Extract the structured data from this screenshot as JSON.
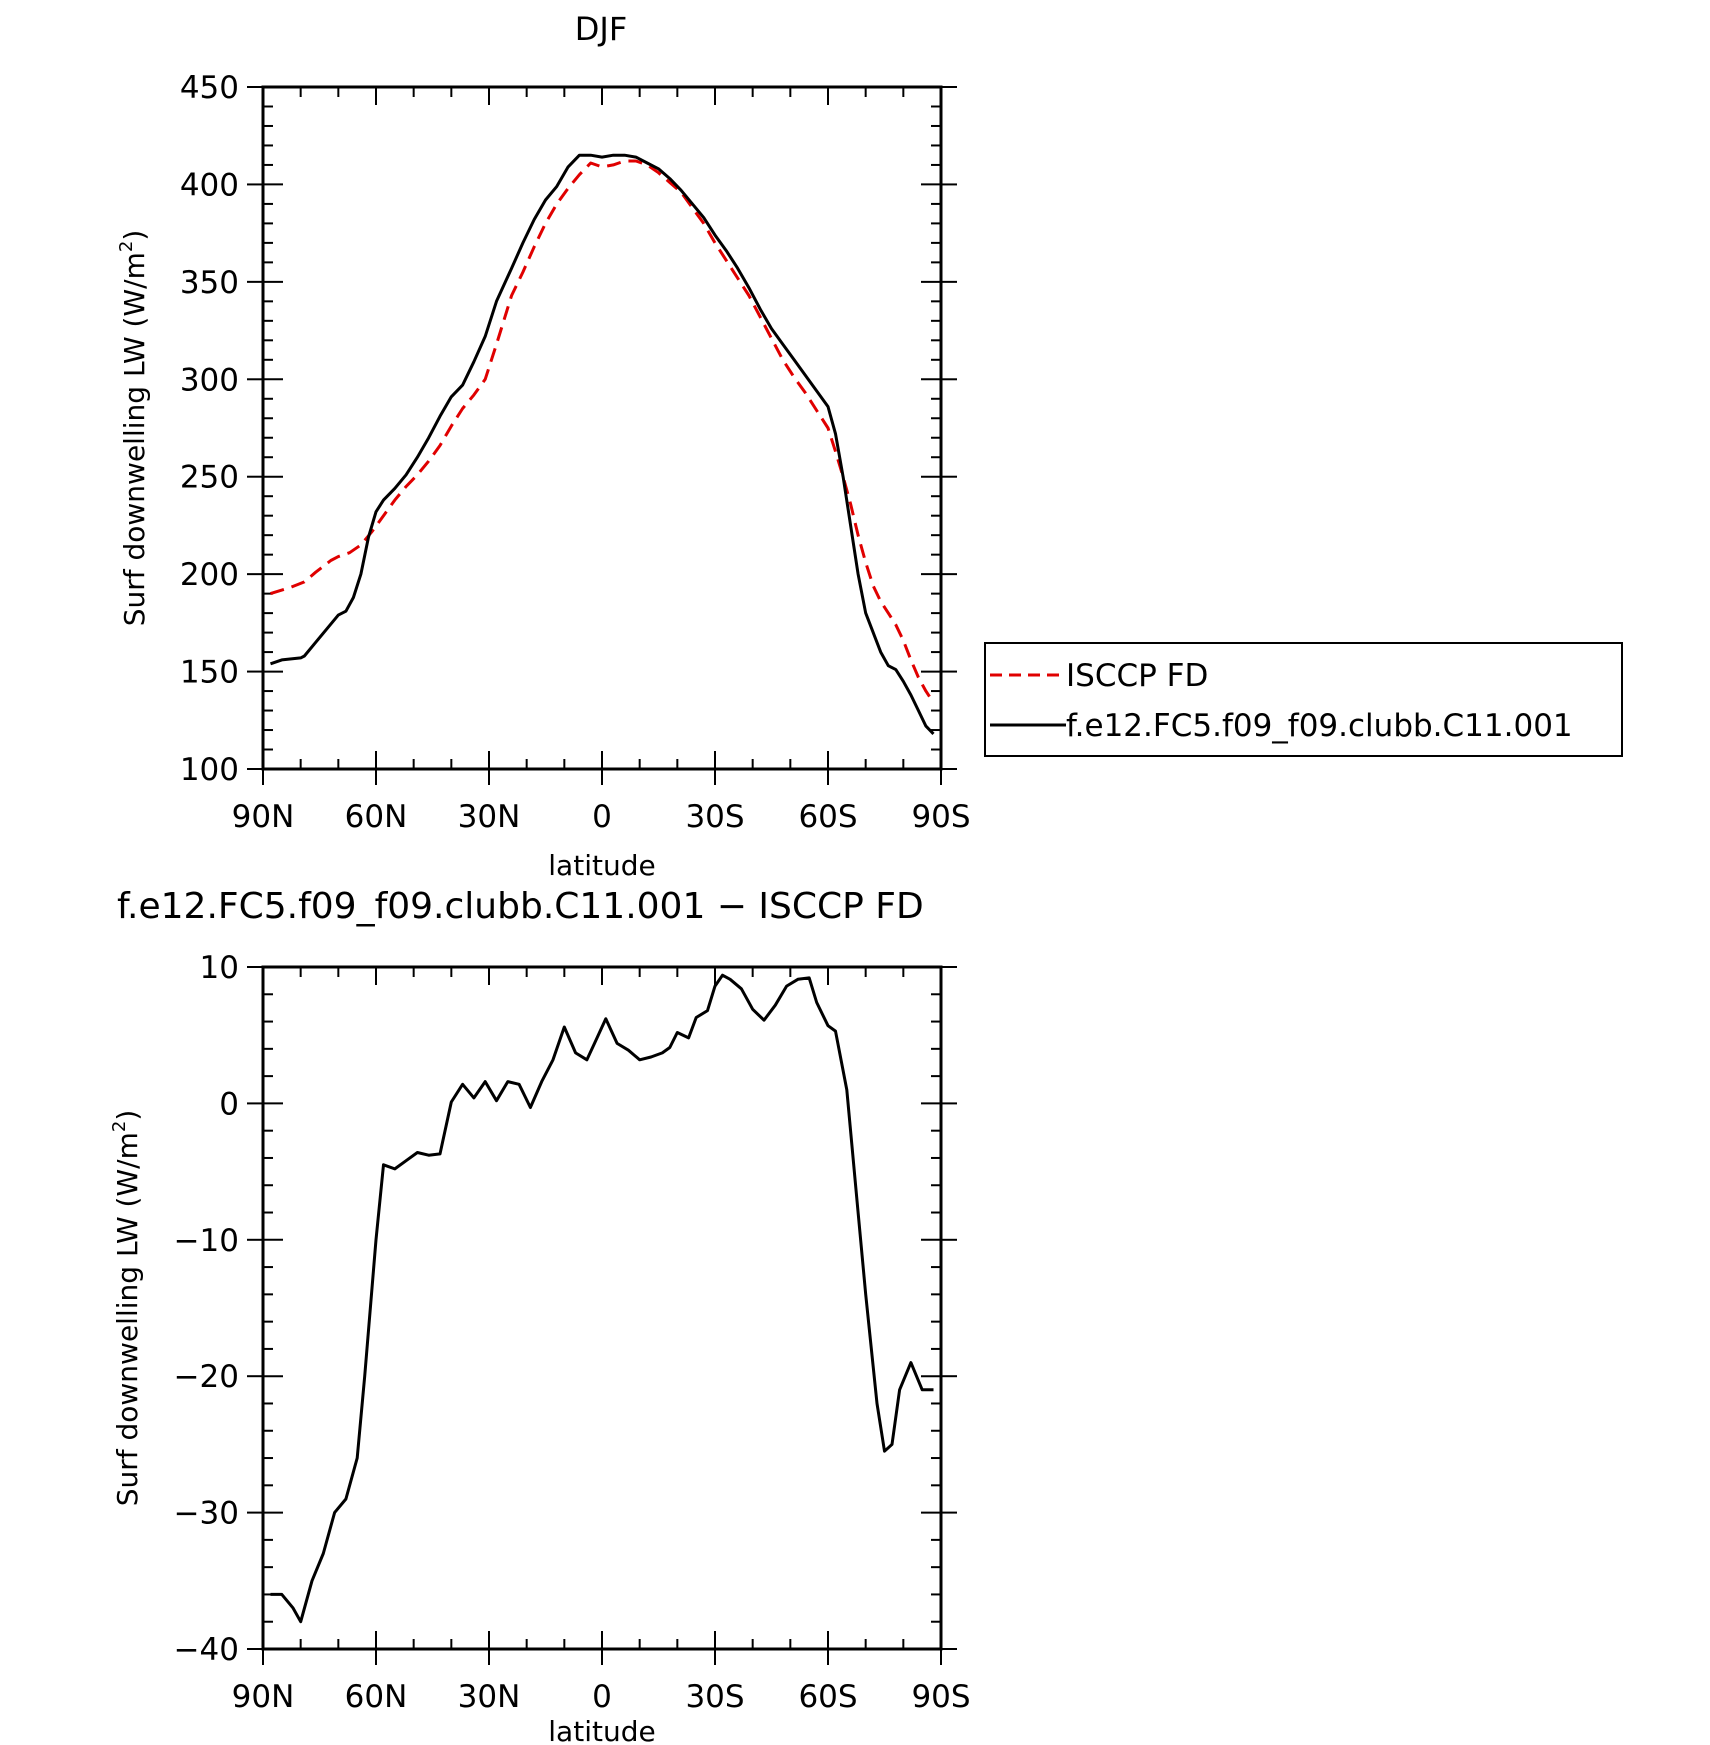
{
  "chart_data": [
    {
      "type": "line",
      "title": "DJF",
      "xlabel": "latitude",
      "ylabel": "Surf downwelling LW (W/m²)",
      "ylabel_base": "Surf downwelling LW (W/m",
      "ylabel_sup": "2",
      "ylabel_tail": ")",
      "x_direction": "north-to-south",
      "xlim": [
        90,
        -90
      ],
      "ylim": [
        100,
        450
      ],
      "x_ticks": [
        {
          "value": 90,
          "label": "90N"
        },
        {
          "value": 60,
          "label": "60N"
        },
        {
          "value": 30,
          "label": "30N"
        },
        {
          "value": 0,
          "label": "0"
        },
        {
          "value": -30,
          "label": "30S"
        },
        {
          "value": -60,
          "label": "60S"
        },
        {
          "value": -90,
          "label": "90S"
        }
      ],
      "y_ticks": [
        {
          "value": 100,
          "label": "100"
        },
        {
          "value": 150,
          "label": "150"
        },
        {
          "value": 200,
          "label": "200"
        },
        {
          "value": 250,
          "label": "250"
        },
        {
          "value": 300,
          "label": "300"
        },
        {
          "value": 350,
          "label": "350"
        },
        {
          "value": 400,
          "label": "400"
        },
        {
          "value": 450,
          "label": "450"
        }
      ],
      "grid": false,
      "legend_position": "right, outside plot",
      "series": [
        {
          "name": "ISCCP FD",
          "color": "#e00000",
          "dash": "dashed",
          "x": [
            88,
            83,
            79,
            76,
            72,
            70,
            67,
            64,
            61,
            58,
            55,
            52,
            49,
            46,
            43,
            40,
            37,
            34,
            31,
            28,
            24,
            21,
            18,
            15,
            12,
            9,
            6,
            3,
            0,
            -3,
            -6,
            -9,
            -12,
            -15,
            -18,
            -21,
            -24,
            -27,
            -30,
            -33,
            -36,
            -39,
            -42,
            -45,
            -48,
            -51,
            -54,
            -57,
            -60,
            -62,
            -64,
            -66,
            -68,
            -70,
            -72,
            -74,
            -76,
            -78,
            -80,
            -82,
            -84,
            -86,
            -88
          ],
          "values": [
            190,
            193,
            196,
            201,
            207,
            209,
            211,
            215,
            222,
            230,
            238,
            245,
            251,
            258,
            266,
            276,
            285,
            292,
            300,
            318,
            343,
            355,
            368,
            380,
            390,
            398,
            405,
            411,
            409,
            410,
            412,
            412,
            410,
            406,
            401,
            396,
            388,
            380,
            370,
            361,
            352,
            343,
            332,
            321,
            310,
            301,
            293,
            284,
            275,
            263,
            250,
            236,
            220,
            206,
            194,
            186,
            180,
            174,
            166,
            156,
            147,
            140,
            134
          ]
        },
        {
          "name": "f.e12.FC5.f09_f09.clubb.C11.001",
          "color": "#000000",
          "dash": "solid",
          "x": [
            88,
            85,
            80,
            79,
            76,
            73,
            70,
            68,
            66,
            64,
            62,
            60,
            58,
            55,
            52,
            49,
            46,
            43,
            40,
            37,
            34,
            31,
            28,
            24,
            21,
            18,
            15,
            12,
            9,
            6,
            3,
            0,
            -3,
            -6,
            -9,
            -12,
            -15,
            -18,
            -21,
            -24,
            -27,
            -30,
            -33,
            -36,
            -39,
            -42,
            -45,
            -48,
            -51,
            -54,
            -57,
            -60,
            -62,
            -64,
            -66,
            -68,
            -70,
            -72,
            -74,
            -76,
            -78,
            -80,
            -82,
            -84,
            -86,
            -88
          ],
          "values": [
            154,
            156,
            157,
            158,
            165,
            172,
            179,
            181,
            188,
            200,
            219,
            232,
            238,
            244,
            251,
            260,
            270,
            281,
            291,
            297,
            309,
            322,
            340,
            357,
            370,
            382,
            392,
            399,
            409,
            415,
            415,
            414,
            415,
            415,
            414,
            411,
            408,
            403,
            397,
            390,
            383,
            374,
            366,
            357,
            347,
            336,
            326,
            318,
            310,
            302,
            294,
            286,
            272,
            250,
            225,
            200,
            180,
            170,
            160,
            153,
            151,
            145,
            138,
            130,
            122,
            118
          ]
        }
      ],
      "legend": [
        {
          "label": "ISCCP FD",
          "color": "#e00000",
          "dash": "dashed"
        },
        {
          "label": "f.e12.FC5.f09_f09.clubb.C11.001",
          "color": "#000000",
          "dash": "solid"
        }
      ]
    },
    {
      "type": "line",
      "title": "f.e12.FC5.f09_f09.clubb.C11.001 − ISCCP FD",
      "xlabel": "latitude",
      "ylabel": "Surf downwelling LW (W/m²)",
      "ylabel_base": "Surf downwelling LW (W/m",
      "ylabel_sup": "2",
      "ylabel_tail": ")",
      "x_direction": "north-to-south",
      "xlim": [
        90,
        -90
      ],
      "ylim": [
        -40,
        10
      ],
      "x_ticks": [
        {
          "value": 90,
          "label": "90N"
        },
        {
          "value": 60,
          "label": "60N"
        },
        {
          "value": 30,
          "label": "30N"
        },
        {
          "value": 0,
          "label": "0"
        },
        {
          "value": -30,
          "label": "30S"
        },
        {
          "value": -60,
          "label": "60S"
        },
        {
          "value": -90,
          "label": "90S"
        }
      ],
      "y_ticks": [
        {
          "value": -40,
          "label": "−40"
        },
        {
          "value": -30,
          "label": "−30"
        },
        {
          "value": -20,
          "label": "−20"
        },
        {
          "value": -10,
          "label": "−10"
        },
        {
          "value": 0,
          "label": "0"
        },
        {
          "value": 10,
          "label": "10"
        }
      ],
      "grid": false,
      "series": [
        {
          "name": "",
          "color": "#000000",
          "dash": "solid",
          "x": [
            88,
            85,
            82,
            80,
            77,
            74,
            71,
            68,
            65,
            63,
            60,
            58,
            55,
            52,
            49,
            46,
            43,
            40,
            37,
            34,
            31,
            28,
            25,
            22,
            19,
            16,
            13,
            10,
            7,
            4,
            2,
            -1,
            -4,
            -7,
            -10,
            -13,
            -16,
            -18,
            -20,
            -23,
            -25,
            -28,
            -30,
            -32,
            -34,
            -37,
            -40,
            -43,
            -46,
            -49,
            -52,
            -55,
            -57,
            -60,
            -62,
            -65,
            -68,
            -70,
            -73,
            -75,
            -77,
            -79,
            -82,
            -85,
            -88
          ],
          "values": [
            -36,
            -36,
            -37,
            -38,
            -35,
            -33,
            -30,
            -29,
            -26,
            -20,
            -10,
            -4.5,
            -4.8,
            -4.2,
            -3.6,
            -3.8,
            -3.7,
            0.1,
            1.4,
            0.4,
            1.6,
            0.2,
            1.6,
            1.4,
            -0.3,
            1.6,
            3.2,
            5.6,
            3.7,
            3.2,
            4.4,
            6.2,
            4.4,
            3.9,
            3.2,
            3.4,
            3.7,
            4.1,
            5.2,
            4.8,
            6.3,
            6.8,
            8.6,
            9.4,
            9.1,
            8.4,
            6.9,
            6.1,
            7.2,
            8.6,
            9.1,
            9.2,
            7.4,
            5.7,
            5.3,
            1,
            -8,
            -14,
            -22,
            -25.5,
            -25,
            -21,
            -19,
            -21,
            -21
          ]
        }
      ]
    }
  ]
}
